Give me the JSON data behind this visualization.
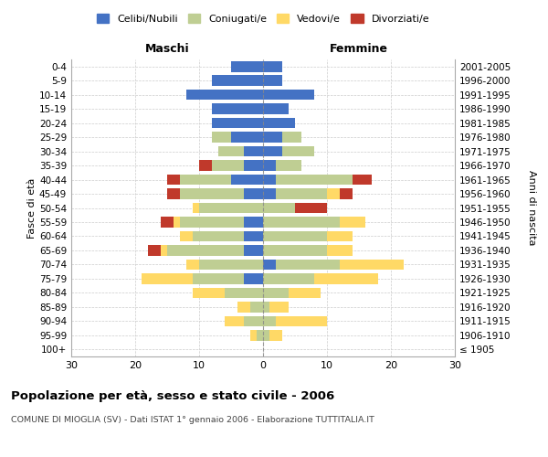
{
  "age_groups": [
    "100+",
    "95-99",
    "90-94",
    "85-89",
    "80-84",
    "75-79",
    "70-74",
    "65-69",
    "60-64",
    "55-59",
    "50-54",
    "45-49",
    "40-44",
    "35-39",
    "30-34",
    "25-29",
    "20-24",
    "15-19",
    "10-14",
    "5-9",
    "0-4"
  ],
  "birth_years": [
    "≤ 1905",
    "1906-1910",
    "1911-1915",
    "1916-1920",
    "1921-1925",
    "1926-1930",
    "1931-1935",
    "1936-1940",
    "1941-1945",
    "1946-1950",
    "1951-1955",
    "1956-1960",
    "1961-1965",
    "1966-1970",
    "1971-1975",
    "1976-1980",
    "1981-1985",
    "1986-1990",
    "1991-1995",
    "1996-2000",
    "2001-2005"
  ],
  "male": {
    "celibi": [
      0,
      0,
      0,
      0,
      0,
      3,
      0,
      3,
      3,
      3,
      0,
      3,
      5,
      3,
      3,
      5,
      8,
      8,
      12,
      8,
      5
    ],
    "coniugati": [
      0,
      1,
      3,
      2,
      6,
      8,
      10,
      12,
      8,
      10,
      10,
      10,
      8,
      5,
      4,
      3,
      0,
      0,
      0,
      0,
      0
    ],
    "vedovi": [
      0,
      1,
      3,
      2,
      5,
      8,
      2,
      1,
      2,
      1,
      1,
      0,
      0,
      0,
      0,
      0,
      0,
      0,
      0,
      0,
      0
    ],
    "divorziati": [
      0,
      0,
      0,
      0,
      0,
      0,
      0,
      2,
      0,
      2,
      0,
      2,
      2,
      2,
      0,
      0,
      0,
      0,
      0,
      0,
      0
    ]
  },
  "female": {
    "nubili": [
      0,
      0,
      0,
      0,
      0,
      0,
      2,
      0,
      0,
      0,
      0,
      2,
      2,
      2,
      3,
      3,
      5,
      4,
      8,
      3,
      3
    ],
    "coniugate": [
      0,
      1,
      2,
      1,
      4,
      8,
      10,
      10,
      10,
      12,
      5,
      8,
      12,
      4,
      5,
      3,
      0,
      0,
      0,
      0,
      0
    ],
    "vedove": [
      0,
      2,
      8,
      3,
      5,
      10,
      10,
      4,
      4,
      4,
      0,
      2,
      0,
      0,
      0,
      0,
      0,
      0,
      0,
      0,
      0
    ],
    "divorziate": [
      0,
      0,
      0,
      0,
      0,
      0,
      0,
      0,
      0,
      0,
      5,
      2,
      3,
      0,
      0,
      0,
      0,
      0,
      0,
      0,
      0
    ]
  },
  "colors": {
    "celibi_nubili": "#4472C4",
    "coniugati": "#BFCE93",
    "vedovi": "#FFD966",
    "divorziati": "#C0392B"
  },
  "xlim": 30,
  "title": "Popolazione per età, sesso e stato civile - 2006",
  "subtitle": "COMUNE DI MIOGLIA (SV) - Dati ISTAT 1° gennaio 2006 - Elaborazione TUTTITALIA.IT",
  "ylabel_left": "Fasce di età",
  "ylabel_right": "Anni di nascita",
  "xlabel_left": "Maschi",
  "xlabel_right": "Femmine"
}
